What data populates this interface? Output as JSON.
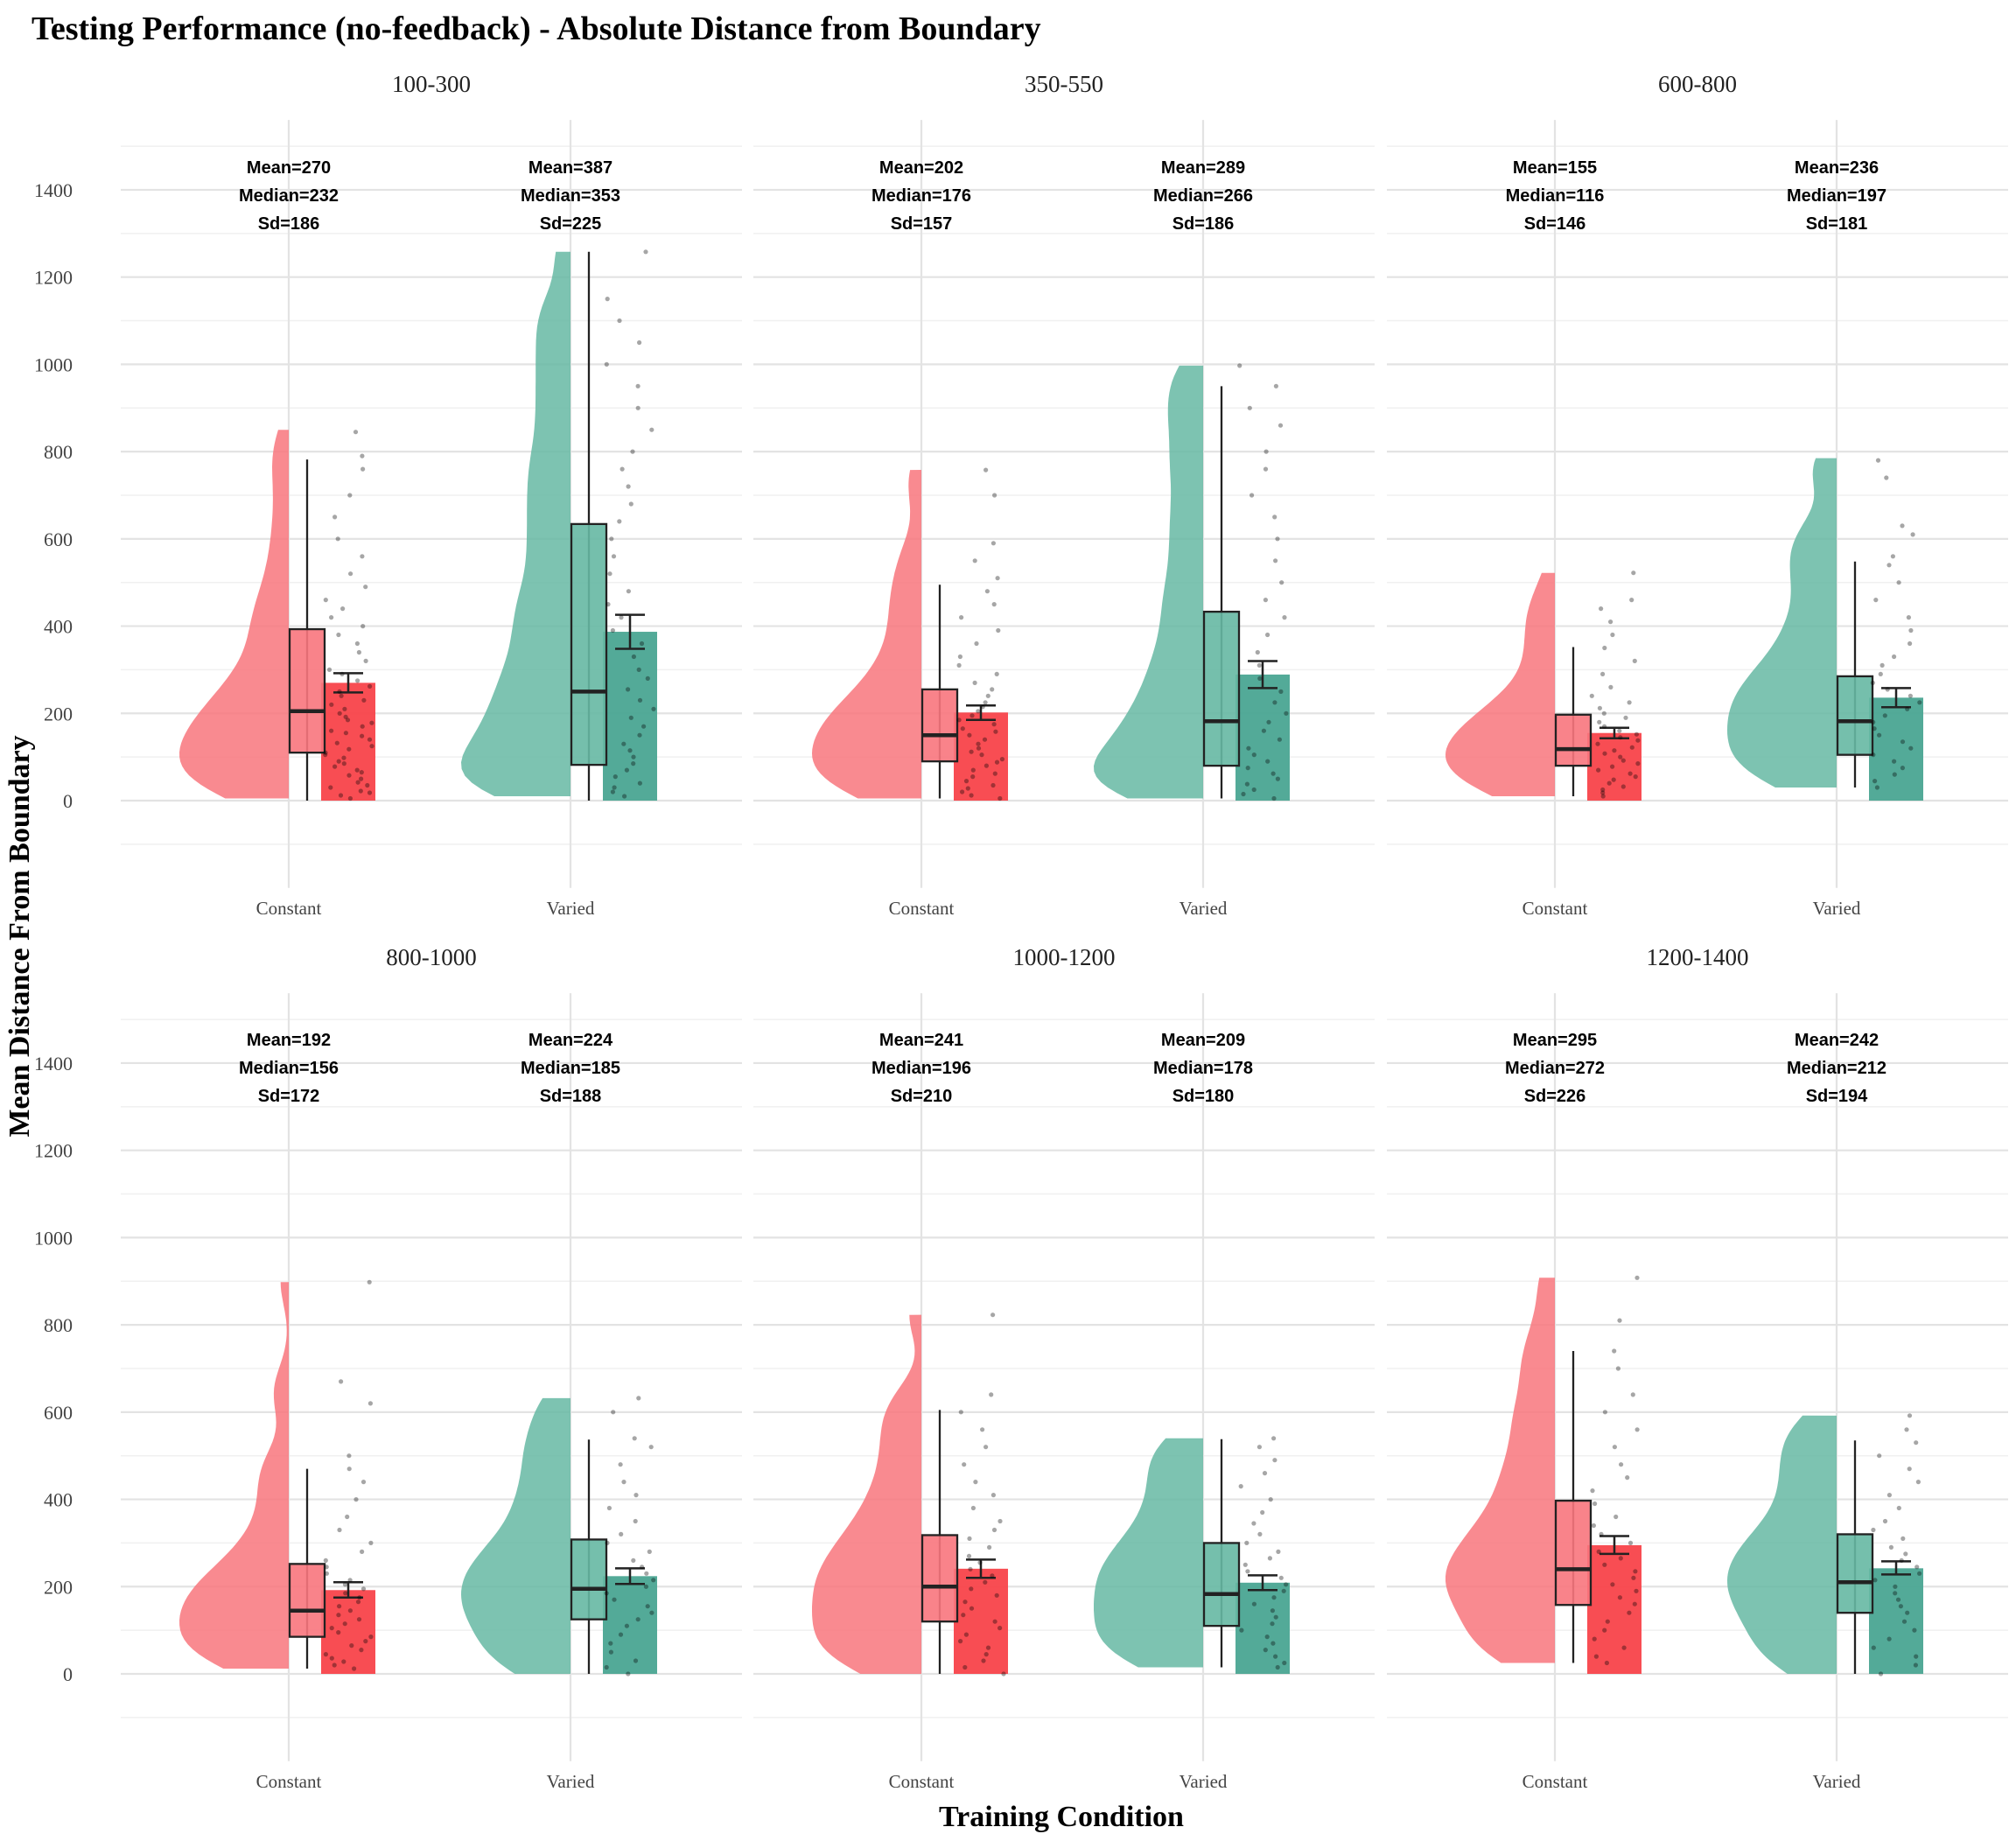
{
  "title": "Testing Performance (no-feedback) - Absolute Distance from Boundary",
  "xlabel": "Training Condition",
  "ylabel": "Mean Distance From Boundary",
  "colors": {
    "Constant": "#f8767d",
    "Varied": "#66b8a3",
    "Constant_bar": "#f8434a",
    "Varied_bar": "#4aa592"
  },
  "chart_data": {
    "type": "raincloud",
    "ylim": [
      -200,
      1560
    ],
    "yticks": [
      0,
      200,
      400,
      600,
      800,
      1000,
      1200,
      1400
    ],
    "categories": [
      "Constant",
      "Varied"
    ],
    "grid": true,
    "panels": [
      {
        "title": "100-300",
        "groups": [
          {
            "condition": "Constant",
            "mean": 270,
            "median": 232,
            "sd": 186,
            "box_q1": 110,
            "box_median": 205,
            "box_q3": 393,
            "whisker_low": 0,
            "whisker_high": 782,
            "bar_mean": 270,
            "err_low": 248,
            "err_high": 292,
            "density_max": 850,
            "points": [
              5,
              12,
              18,
              22,
              30,
              35,
              42,
              50,
              58,
              65,
              70,
              78,
              85,
              90,
              98,
              105,
              110,
              118,
              125,
              132,
              140,
              148,
              155,
              160,
              170,
              178,
              185,
              192,
              200,
              210,
              220,
              230,
              240,
              250,
              262,
              275,
              290,
              300,
              320,
              340,
              360,
              380,
              400,
              420,
              440,
              460,
              490,
              520,
              560,
              600,
              650,
              700,
              760,
              790,
              845
            ]
          },
          {
            "condition": "Varied",
            "mean": 387,
            "median": 353,
            "sd": 225,
            "box_q1": 82,
            "box_median": 250,
            "box_q3": 634,
            "whisker_low": 0,
            "whisker_high": 1258,
            "bar_mean": 387,
            "err_low": 348,
            "err_high": 426,
            "density_max": 1258,
            "points": [
              10,
              20,
              30,
              40,
              55,
              70,
              85,
              100,
              115,
              130,
              150,
              170,
              190,
              210,
              230,
              255,
              280,
              300,
              330,
              360,
              390,
              420,
              450,
              480,
              520,
              560,
              600,
              640,
              680,
              720,
              760,
              800,
              850,
              900,
              950,
              1000,
              1050,
              1100,
              1150,
              1258
            ]
          }
        ]
      },
      {
        "title": "350-550",
        "groups": [
          {
            "condition": "Constant",
            "mean": 202,
            "median": 176,
            "sd": 157,
            "box_q1": 90,
            "box_median": 150,
            "box_q3": 255,
            "whisker_low": 5,
            "whisker_high": 495,
            "bar_mean": 202,
            "err_low": 185,
            "err_high": 218,
            "density_max": 758,
            "points": [
              5,
              12,
              20,
              28,
              35,
              45,
              55,
              62,
              70,
              80,
              88,
              95,
              105,
              112,
              120,
              130,
              140,
              150,
              158,
              165,
              175,
              185,
              195,
              205,
              215,
              225,
              240,
              255,
              270,
              290,
              310,
              330,
              360,
              390,
              420,
              450,
              480,
              510,
              550,
              590,
              700,
              758
            ]
          },
          {
            "condition": "Varied",
            "mean": 289,
            "median": 266,
            "sd": 186,
            "box_q1": 80,
            "box_median": 182,
            "box_q3": 433,
            "whisker_low": 5,
            "whisker_high": 950,
            "bar_mean": 289,
            "err_low": 258,
            "err_high": 320,
            "density_max": 997,
            "points": [
              5,
              15,
              25,
              38,
              50,
              62,
              75,
              90,
              105,
              120,
              140,
              160,
              180,
              200,
              225,
              250,
              280,
              310,
              340,
              380,
              420,
              460,
              500,
              550,
              600,
              650,
              700,
              760,
              800,
              860,
              900,
              950,
              997
            ]
          }
        ]
      },
      {
        "title": "600-800",
        "groups": [
          {
            "condition": "Constant",
            "mean": 155,
            "median": 116,
            "sd": 146,
            "box_q1": 80,
            "box_median": 118,
            "box_q3": 197,
            "whisker_low": 10,
            "whisker_high": 352,
            "bar_mean": 155,
            "err_low": 143,
            "err_high": 167,
            "density_max": 522,
            "points": [
              10,
              18,
              25,
              32,
              40,
              48,
              55,
              62,
              70,
              78,
              85,
              92,
              100,
              108,
              115,
              122,
              130,
              138,
              145,
              152,
              160,
              170,
              180,
              190,
              200,
              212,
              225,
              240,
              260,
              290,
              320,
              350,
              380,
              410,
              440,
              460,
              522
            ]
          },
          {
            "condition": "Varied",
            "mean": 236,
            "median": 197,
            "sd": 181,
            "box_q1": 105,
            "box_median": 182,
            "box_q3": 285,
            "whisker_low": 30,
            "whisker_high": 548,
            "bar_mean": 236,
            "err_low": 214,
            "err_high": 258,
            "density_max": 785,
            "points": [
              30,
              45,
              60,
              75,
              90,
              105,
              120,
              135,
              150,
              165,
              180,
              195,
              210,
              225,
              240,
              255,
              270,
              290,
              310,
              330,
              360,
              390,
              420,
              460,
              500,
              540,
              560,
              610,
              630,
              740,
              780
            ]
          }
        ]
      },
      {
        "title": "800-1000",
        "groups": [
          {
            "condition": "Constant",
            "mean": 192,
            "median": 156,
            "sd": 172,
            "box_q1": 85,
            "box_median": 145,
            "box_q3": 252,
            "whisker_low": 12,
            "whisker_high": 470,
            "bar_mean": 192,
            "err_low": 175,
            "err_high": 210,
            "density_max": 898,
            "points": [
              12,
              20,
              28,
              36,
              45,
              55,
              65,
              75,
              85,
              95,
              105,
              115,
              125,
              135,
              145,
              155,
              165,
              175,
              185,
              195,
              205,
              215,
              230,
              245,
              260,
              280,
              300,
              330,
              360,
              400,
              440,
              470,
              500,
              620,
              670,
              898
            ]
          },
          {
            "condition": "Varied",
            "mean": 224,
            "median": 185,
            "sd": 188,
            "box_q1": 125,
            "box_median": 195,
            "box_q3": 308,
            "whisker_low": 0,
            "whisker_high": 537,
            "bar_mean": 224,
            "err_low": 206,
            "err_high": 242,
            "density_max": 632,
            "points": [
              0,
              15,
              30,
              50,
              70,
              90,
              110,
              125,
              140,
              155,
              170,
              185,
              200,
              215,
              230,
              245,
              260,
              280,
              300,
              320,
              350,
              380,
              410,
              440,
              480,
              520,
              540,
              600,
              632
            ]
          }
        ]
      },
      {
        "title": "1000-1200",
        "groups": [
          {
            "condition": "Constant",
            "mean": 241,
            "median": 196,
            "sd": 210,
            "box_q1": 120,
            "box_median": 200,
            "box_q3": 318,
            "whisker_low": 0,
            "whisker_high": 605,
            "bar_mean": 241,
            "err_low": 220,
            "err_high": 262,
            "density_max": 823,
            "points": [
              0,
              15,
              30,
              45,
              60,
              75,
              90,
              105,
              120,
              135,
              150,
              165,
              180,
              195,
              210,
              225,
              240,
              255,
              270,
              290,
              310,
              330,
              350,
              380,
              410,
              440,
              480,
              520,
              560,
              600,
              640,
              823
            ]
          },
          {
            "condition": "Varied",
            "mean": 209,
            "median": 178,
            "sd": 180,
            "box_q1": 110,
            "box_median": 183,
            "box_q3": 300,
            "whisker_low": 15,
            "whisker_high": 538,
            "bar_mean": 209,
            "err_low": 192,
            "err_high": 226,
            "density_max": 540,
            "points": [
              15,
              25,
              40,
              55,
              70,
              85,
              100,
              115,
              130,
              145,
              160,
              175,
              190,
              205,
              220,
              235,
              250,
              265,
              280,
              300,
              320,
              345,
              370,
              400,
              430,
              460,
              490,
              520,
              540
            ]
          }
        ]
      },
      {
        "title": "1200-1400",
        "groups": [
          {
            "condition": "Constant",
            "mean": 295,
            "median": 272,
            "sd": 226,
            "box_q1": 158,
            "box_median": 240,
            "box_q3": 397,
            "whisker_low": 25,
            "whisker_high": 740,
            "bar_mean": 295,
            "err_low": 275,
            "err_high": 316,
            "density_max": 908,
            "points": [
              25,
              40,
              60,
              80,
              100,
              120,
              140,
              160,
              175,
              190,
              205,
              220,
              235,
              250,
              265,
              280,
              300,
              320,
              340,
              360,
              390,
              420,
              450,
              480,
              520,
              560,
              600,
              640,
              700,
              740,
              810,
              908
            ]
          },
          {
            "condition": "Varied",
            "mean": 242,
            "median": 212,
            "sd": 194,
            "box_q1": 140,
            "box_median": 210,
            "box_q3": 320,
            "whisker_low": 0,
            "whisker_high": 535,
            "bar_mean": 242,
            "err_low": 228,
            "err_high": 258,
            "density_max": 592,
            "points": [
              0,
              20,
              40,
              60,
              80,
              100,
              120,
              140,
              155,
              170,
              185,
              200,
              215,
              230,
              245,
              260,
              275,
              290,
              310,
              330,
              350,
              380,
              410,
              440,
              470,
              500,
              530,
              560,
              592
            ]
          }
        ]
      }
    ]
  }
}
